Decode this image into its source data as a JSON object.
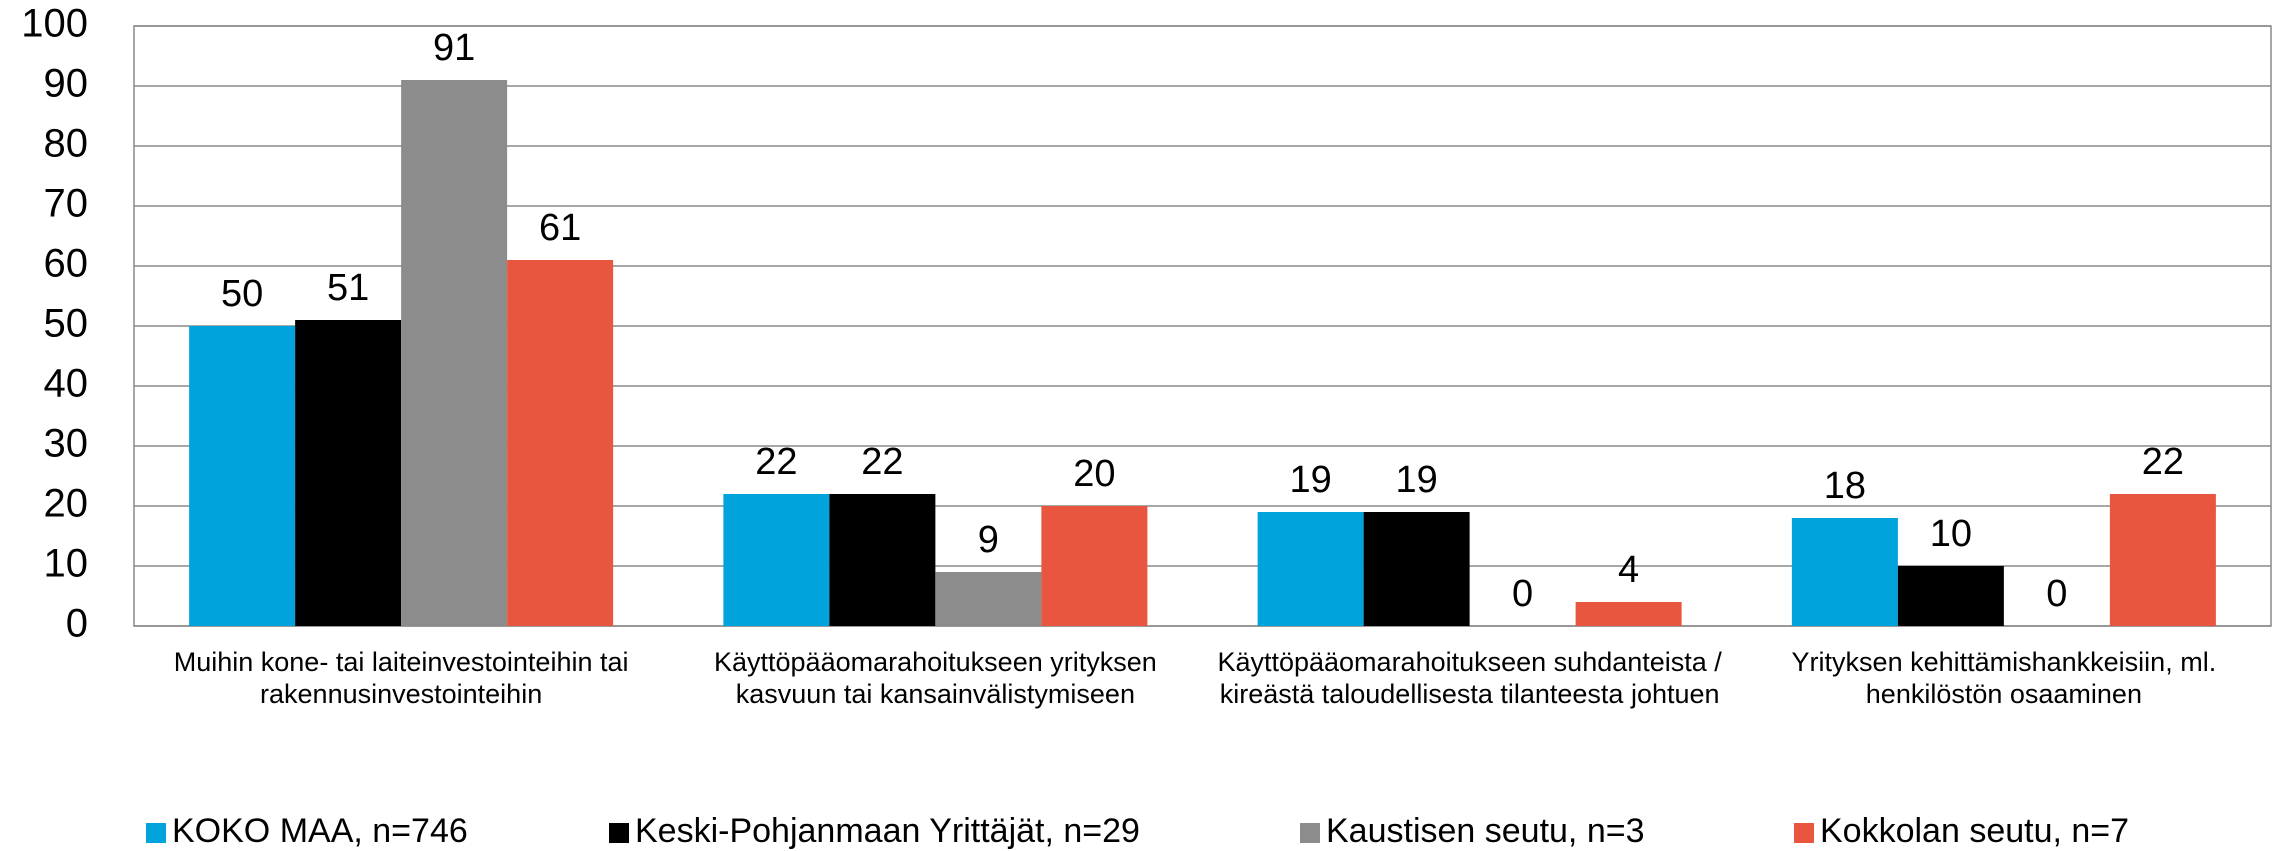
{
  "chart_data": {
    "type": "bar",
    "categories": [
      "Muihin kone- tai laiteinvestointeihin tai rakennusinvestointeihin",
      "Käyttöpääomarahoitukseen yrityksen kasvuun tai kansainvälistymiseen",
      "Käyttöpääomarahoitukseen suhdanteista / kireästä taloudellisesta tilanteesta johtuen",
      "Yrityksen kehittämishankkeisiin, ml. henkilöstön osaaminen"
    ],
    "series": [
      {
        "name": "KOKO MAA, n=746",
        "color": "#00a3dc",
        "values": [
          50,
          22,
          19,
          18
        ]
      },
      {
        "name": "Keski-Pohjanmaan Yrittäjät, n=29",
        "color": "#000000",
        "values": [
          51,
          22,
          19,
          10
        ]
      },
      {
        "name": "Kaustisen seutu, n=3",
        "color": "#8c8c8c",
        "values": [
          91,
          9,
          0,
          0
        ]
      },
      {
        "name": "Kokkolan seutu, n=7",
        "color": "#e8563f",
        "values": [
          61,
          20,
          4,
          22
        ]
      }
    ],
    "ylim": [
      0,
      100
    ],
    "yticks": [
      0,
      10,
      20,
      30,
      40,
      50,
      60,
      70,
      80,
      90,
      100
    ],
    "grid": true,
    "legend": "bottom"
  }
}
